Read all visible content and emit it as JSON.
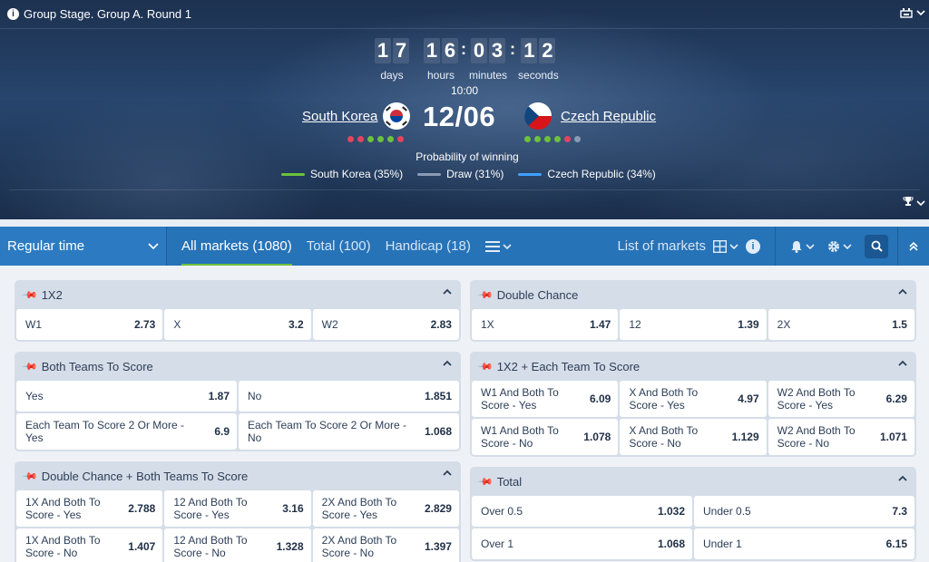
{
  "header": {
    "stage_title": "Group Stage. Group A. Round 1",
    "countdown": {
      "days": [
        "1",
        "7"
      ],
      "hours": [
        "1",
        "6"
      ],
      "minutes": [
        "0",
        "3"
      ],
      "seconds": [
        "1",
        "2"
      ],
      "labels": {
        "days": "days",
        "hours": "hours",
        "minutes": "minutes",
        "seconds": "seconds"
      }
    },
    "match_time": "10:00",
    "match_date": "12/06",
    "home_team": "South Korea",
    "away_team": "Czech Republic",
    "home_form": [
      "L",
      "L",
      "W",
      "W",
      "W",
      "L"
    ],
    "away_form": [
      "W",
      "W",
      "W",
      "W",
      "L",
      "D"
    ],
    "probability_title": "Probability of winning",
    "probabilities": [
      {
        "label": "South Korea (35%)",
        "color": "#6dc13d"
      },
      {
        "label": "Draw (31%)",
        "color": "#8a9bb5"
      },
      {
        "label": "Czech Republic (34%)",
        "color": "#3fa0ff"
      }
    ]
  },
  "toolbar": {
    "period": "Regular time",
    "tabs": [
      "All markets (1080)",
      "Total (100)",
      "Handicap (18)"
    ],
    "list_of_markets": "List of markets"
  },
  "markets": {
    "x12": {
      "title": "1X2",
      "cells": [
        {
          "label": "W1",
          "odd": "2.73"
        },
        {
          "label": "X",
          "odd": "3.2"
        },
        {
          "label": "W2",
          "odd": "2.83"
        }
      ]
    },
    "double_chance": {
      "title": "Double Chance",
      "cells": [
        {
          "label": "1X",
          "odd": "1.47"
        },
        {
          "label": "12",
          "odd": "1.39"
        },
        {
          "label": "2X",
          "odd": "1.5"
        }
      ]
    },
    "btts": {
      "title": "Both Teams To Score",
      "cells": [
        {
          "label": "Yes",
          "odd": "1.87"
        },
        {
          "label": "No",
          "odd": "1.851"
        },
        {
          "label": "Each Team To Score 2 Or More - Yes",
          "odd": "6.9"
        },
        {
          "label": "Each Team To Score 2 Or More - No",
          "odd": "1.068"
        }
      ]
    },
    "x12_each": {
      "title": "1X2 + Each Team To Score",
      "cells": [
        {
          "label": "W1 And Both To Score - Yes",
          "odd": "6.09"
        },
        {
          "label": "X And Both To Score - Yes",
          "odd": "4.97"
        },
        {
          "label": "W2 And Both To Score - Yes",
          "odd": "6.29"
        },
        {
          "label": "W1 And Both To Score - No",
          "odd": "1.078"
        },
        {
          "label": "X And Both To Score - No",
          "odd": "1.129"
        },
        {
          "label": "W2 And Both To Score - No",
          "odd": "1.071"
        }
      ]
    },
    "dc_btts": {
      "title": "Double Chance + Both Teams To Score",
      "cells": [
        {
          "label": "1X And Both To Score - Yes",
          "odd": "2.788"
        },
        {
          "label": "12 And Both To Score - Yes",
          "odd": "3.16"
        },
        {
          "label": "2X And Both To Score - Yes",
          "odd": "2.829"
        },
        {
          "label": "1X And Both To Score - No",
          "odd": "1.407"
        },
        {
          "label": "12 And Both To Score - No",
          "odd": "1.328"
        },
        {
          "label": "2X And Both To Score - No",
          "odd": "1.397"
        }
      ]
    },
    "total": {
      "title": "Total",
      "cells": [
        {
          "label": "Over 0.5",
          "odd": "1.032"
        },
        {
          "label": "Under 0.5",
          "odd": "7.3"
        },
        {
          "label": "Over 1",
          "odd": "1.068"
        },
        {
          "label": "Under 1",
          "odd": "6.15"
        }
      ]
    }
  }
}
